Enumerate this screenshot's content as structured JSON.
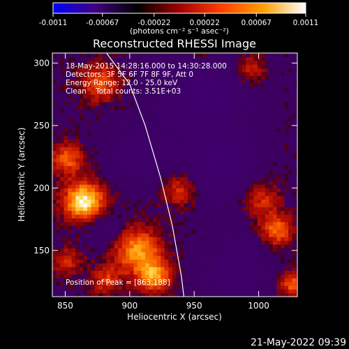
{
  "chart_data": {
    "type": "heatmap",
    "title": "Reconstructed RHESSI Image",
    "xlabel": "Heliocentric X (arcsec)",
    "ylabel": "Heliocentric Y (arcsec)",
    "xlim": [
      840,
      1030
    ],
    "ylim": [
      113,
      308
    ],
    "x_ticks": [
      850,
      900,
      950,
      1000
    ],
    "y_ticks": [
      150,
      200,
      250,
      300
    ],
    "colorbar": {
      "range": [
        -0.0011,
        0.0011
      ],
      "tick_values": [
        -0.0011,
        -0.00067,
        -0.00022,
        0.00022,
        0.00067,
        0.0011
      ],
      "tick_labels": [
        "-0.0011",
        "-0.00067",
        "-0.00022",
        "0.00022",
        "0.00067",
        "0.0011"
      ],
      "unit_label": "(photons cm⁻² s⁻¹ asec⁻²)",
      "colors": [
        "#0000ff",
        "#400080",
        "#000000",
        "#a00000",
        "#ff4000",
        "#ffa000",
        "#ffffff"
      ]
    },
    "annotations": [
      "18-May-2015 14:28:16.000 to 14:30:28.000",
      "Detectors: 3F 5F 6F 7F 8F 9F, Att 0",
      "Energy Range: 12.0 - 25.0 keV",
      "Clean    Total counts: 3.51E+03"
    ],
    "peak_label": "Position of Peak = [863,188]",
    "peak": [
      863,
      188
    ],
    "limb": [
      [
        882,
        308
      ],
      [
        900,
        283
      ],
      [
        912,
        250
      ],
      [
        924,
        208
      ],
      [
        933,
        170
      ],
      [
        940,
        130
      ],
      [
        942,
        113
      ]
    ],
    "emission_sources": [
      {
        "x": 863,
        "y": 188,
        "sigma": 11,
        "amp": 1.0
      },
      {
        "x": 850,
        "y": 222,
        "sigma": 9,
        "amp": 0.55
      },
      {
        "x": 905,
        "y": 148,
        "sigma": 13,
        "amp": 0.72
      },
      {
        "x": 918,
        "y": 128,
        "sigma": 9,
        "amp": 0.65
      },
      {
        "x": 938,
        "y": 198,
        "sigma": 10,
        "amp": 0.45
      },
      {
        "x": 1012,
        "y": 165,
        "sigma": 9,
        "amp": 0.6
      },
      {
        "x": 1024,
        "y": 122,
        "sigma": 7,
        "amp": 0.55
      },
      {
        "x": 990,
        "y": 293,
        "sigma": 10,
        "amp": 0.52
      },
      {
        "x": 1000,
        "y": 190,
        "sigma": 10,
        "amp": 0.42
      },
      {
        "x": 875,
        "y": 283,
        "sigma": 11,
        "amp": 0.5
      },
      {
        "x": 955,
        "y": 305,
        "sigma": 9,
        "amp": 0.4
      },
      {
        "x": 850,
        "y": 140,
        "sigma": 8,
        "amp": 0.38
      },
      {
        "x": 880,
        "y": 125,
        "sigma": 8,
        "amp": 0.42
      }
    ],
    "negative_regions": [
      {
        "x": 958,
        "y": 280,
        "sigma": 25,
        "amp": -0.6
      },
      {
        "x": 905,
        "y": 225,
        "sigma": 15,
        "amp": -0.4
      },
      {
        "x": 968,
        "y": 215,
        "sigma": 18,
        "amp": -0.55
      },
      {
        "x": 980,
        "y": 135,
        "sigma": 18,
        "amp": -0.45
      },
      {
        "x": 878,
        "y": 168,
        "sigma": 9,
        "amp": -0.3
      }
    ]
  },
  "footer_timestamp": "21-May-2022 09:39"
}
